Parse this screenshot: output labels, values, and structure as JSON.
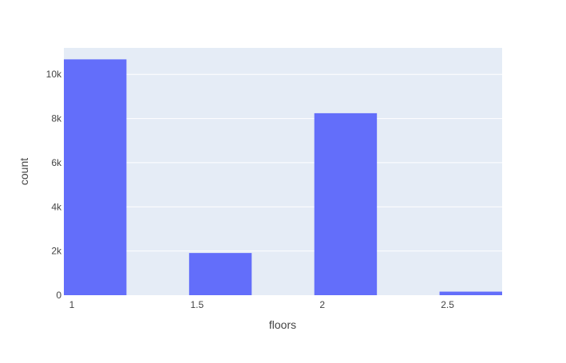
{
  "chart_data": {
    "type": "bar",
    "xlabel": "floors",
    "ylabel": "count",
    "bars": [
      {
        "x0": 1.0,
        "x1": 1.25,
        "value": 10680
      },
      {
        "x0": 1.25,
        "x1": 1.5,
        "value": 0
      },
      {
        "x0": 1.5,
        "x1": 1.75,
        "value": 1910
      },
      {
        "x0": 1.75,
        "x1": 2.0,
        "value": 0
      },
      {
        "x0": 2.0,
        "x1": 2.25,
        "value": 8241
      },
      {
        "x0": 2.25,
        "x1": 2.5,
        "value": 0
      },
      {
        "x0": 2.5,
        "x1": 2.75,
        "value": 161
      }
    ],
    "xrange": [
      1.0,
      2.75
    ],
    "ylim": [
      0,
      11200
    ],
    "xticks": [
      1,
      1.5,
      2,
      2.5
    ],
    "xtick_labels": [
      "1",
      "1.5",
      "2",
      "2.5"
    ],
    "yticks": [
      0,
      2000,
      4000,
      6000,
      8000,
      10000
    ],
    "ytick_labels": [
      "0",
      "2k",
      "4k",
      "6k",
      "8k",
      "10k"
    ],
    "grid": true,
    "bar_color": "#636efa",
    "plot_bg": "#e5ecf6",
    "grid_color": "#ffffff"
  }
}
